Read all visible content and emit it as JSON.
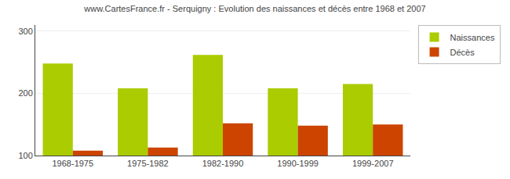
{
  "chart_data": {
    "type": "bar",
    "title": "www.CartesFrance.fr - Serquigny : Evolution des naissances et décès entre 1968 et 2007",
    "categories": [
      "1968-1975",
      "1975-1982",
      "1982-1990",
      "1990-1999",
      "1999-2007"
    ],
    "series": [
      {
        "name": "Naissances",
        "color": "#aacc00",
        "values": [
          248,
          208,
          262,
          208,
          215
        ]
      },
      {
        "name": "Décès",
        "color": "#cc4400",
        "values": [
          108,
          113,
          152,
          148,
          150
        ]
      }
    ],
    "ylim": [
      100,
      310
    ],
    "yticks": [
      100,
      200,
      300
    ],
    "grid": true,
    "legend": "upper right"
  }
}
